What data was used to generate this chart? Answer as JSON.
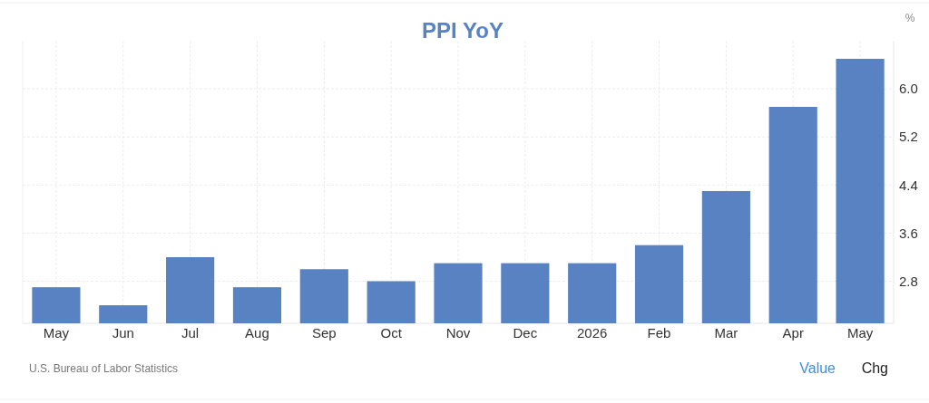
{
  "chart_data": {
    "type": "bar",
    "title": "PPI YoY",
    "ylabel": "%",
    "categories": [
      "May",
      "Jun",
      "Jul",
      "Aug",
      "Sep",
      "Oct",
      "Nov",
      "Dec",
      "2026",
      "Feb",
      "Mar",
      "Apr",
      "May"
    ],
    "values": [
      2.7,
      2.4,
      3.2,
      2.7,
      3.0,
      2.8,
      3.1,
      3.1,
      3.1,
      3.4,
      4.3,
      5.7,
      6.5
    ],
    "color": "#5882c1",
    "ylim": [
      2.1,
      6.8
    ],
    "yticks": [
      2.8,
      3.6,
      4.4,
      5.2,
      {
        "value": 6,
        "label": "6.0"
      }
    ],
    "grid": true,
    "annotations": [
      "U.S. Bureau of Labor Statistics",
      "Value",
      "Chg"
    ]
  }
}
